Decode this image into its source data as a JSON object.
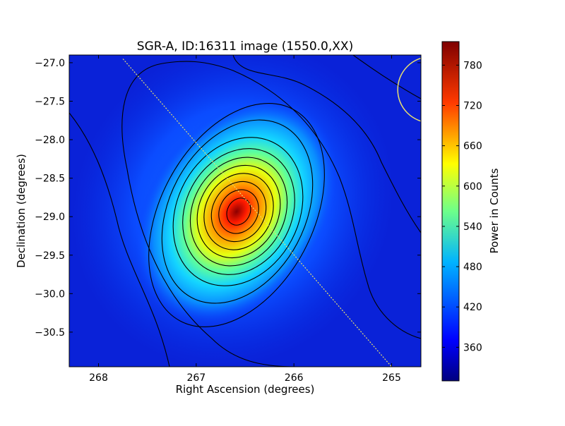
{
  "chart_data": {
    "type": "heatmap",
    "title": "SGR-A, ID:16311 image (1550.0,XX)",
    "xlabel": "Right Ascension (degrees)",
    "ylabel": "Declination (degrees)",
    "colorbar_label": "Power in Counts",
    "colormap": "jet",
    "xlim": [
      268.3,
      264.7
    ],
    "ylim": [
      -30.95,
      -26.9
    ],
    "x_ticks": [
      268,
      267,
      266,
      265
    ],
    "x_tick_labels": [
      "268",
      "267",
      "266",
      "265"
    ],
    "y_ticks": [
      -27.0,
      -27.5,
      -28.0,
      -28.5,
      -29.0,
      -29.5,
      -30.0,
      -30.5
    ],
    "y_tick_labels": [
      "−27.0",
      "−27.5",
      "−28.0",
      "−28.5",
      "−29.0",
      "−29.5",
      "−30.0",
      "−30.5"
    ],
    "value_range": [
      310,
      815
    ],
    "colorbar_ticks": [
      360,
      420,
      480,
      540,
      600,
      660,
      720,
      780
    ],
    "colorbar_tick_labels": [
      "360",
      "420",
      "480",
      "540",
      "600",
      "660",
      "720",
      "780"
    ],
    "peak": {
      "ra": 266.45,
      "dec": -28.95,
      "value": 815
    },
    "contours": "black contour lines around the peak",
    "overlays": [
      {
        "kind": "line",
        "color": "#e8e070",
        "from": {
          "ra": 267.75,
          "dec": -26.95
        },
        "to": {
          "ra": 265.0,
          "dec": -30.95
        }
      },
      {
        "kind": "circle",
        "color": "#e8e070",
        "center": {
          "ra": 264.6,
          "dec": -27.35
        },
        "radius_deg": 0.25
      }
    ]
  }
}
